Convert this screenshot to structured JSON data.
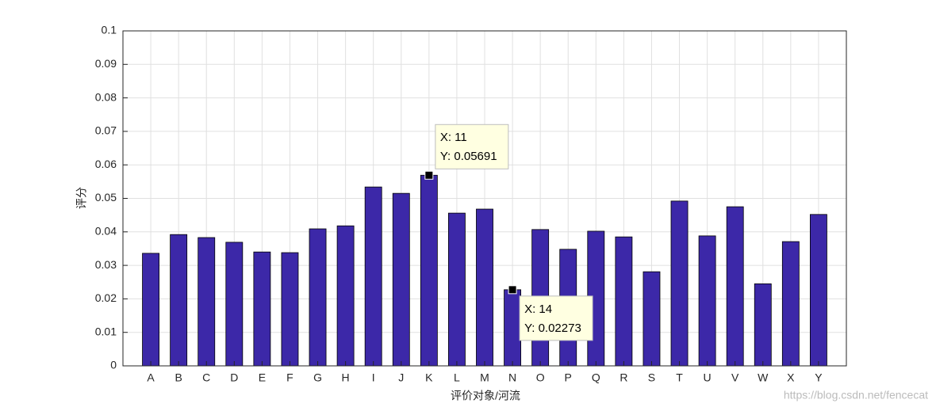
{
  "chart_data": {
    "type": "bar",
    "x_label": "评价对象/河流",
    "y_label": "评分",
    "categories": [
      "A",
      "B",
      "C",
      "D",
      "E",
      "F",
      "G",
      "H",
      "I",
      "J",
      "K",
      "L",
      "M",
      "N",
      "O",
      "P",
      "Q",
      "R",
      "S",
      "T",
      "U",
      "V",
      "W",
      "X",
      "Y"
    ],
    "values": [
      0.0336,
      0.0392,
      0.0383,
      0.0369,
      0.034,
      0.0338,
      0.0409,
      0.0418,
      0.0534,
      0.0515,
      0.05691,
      0.0456,
      0.0468,
      0.02273,
      0.0407,
      0.0348,
      0.0402,
      0.0385,
      0.0281,
      0.0492,
      0.0388,
      0.0475,
      0.0245,
      0.0371,
      0.0452
    ],
    "color": "#3c28a8",
    "ylim": [
      0,
      0.1
    ],
    "yticks": [
      0,
      0.01,
      0.02,
      0.03,
      0.04,
      0.05,
      0.06,
      0.07,
      0.08,
      0.09,
      0.1
    ],
    "grid": true,
    "datatips": [
      {
        "x": 11,
        "y": 0.05691,
        "lines": [
          "X: 11",
          "Y: 0.05691"
        ]
      },
      {
        "x": 14,
        "y": 0.02273,
        "lines": [
          "X: 14",
          "Y: 0.02273"
        ]
      }
    ],
    "watermark": "https://blog.csdn.net/fencecat"
  }
}
